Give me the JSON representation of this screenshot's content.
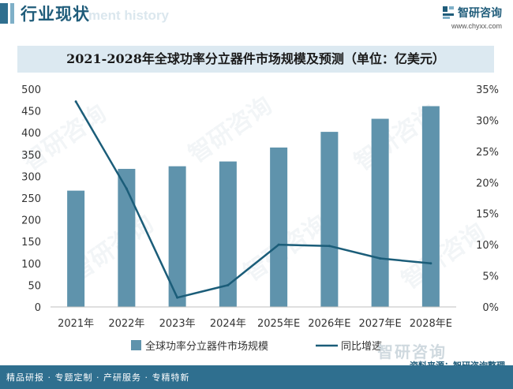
{
  "header": {
    "section_title": "行业现状",
    "section_ghost": "ment history",
    "brand_name": "智研咨询",
    "brand_url": "www.chyxx.com"
  },
  "watermark": "智研咨询",
  "footer": {
    "tagline": "精品研报 · 专题定制 · 产研服务 · 专精特新",
    "source": "资料来源：智研咨询整理",
    "source_brand": "智研咨询"
  },
  "colors": {
    "bar": "#5f93ac",
    "line": "#1b5d79",
    "title_band": "#dce9f1",
    "footer": "#2f6f8f"
  },
  "chart_data": {
    "type": "bar",
    "title": "2021-2028年全球功率分立器件市场规模及预测（单位：亿美元）",
    "categories": [
      "2021年",
      "2022年",
      "2023年",
      "2024年",
      "2025年E",
      "2026年E",
      "2027年E",
      "2028年E"
    ],
    "series": [
      {
        "name": "全球功率分立器件市场规模",
        "type": "bar",
        "axis": "left",
        "values": [
          267,
          317,
          323,
          334,
          366,
          402,
          432,
          461
        ]
      },
      {
        "name": "同比增速",
        "type": "line",
        "axis": "right",
        "values": [
          33.0,
          19.0,
          1.5,
          3.5,
          10.0,
          9.8,
          7.8,
          7.0
        ]
      }
    ],
    "y_left": {
      "min": 0,
      "max": 500,
      "step": 50,
      "ticks": [
        "0",
        "50",
        "100",
        "150",
        "200",
        "250",
        "300",
        "350",
        "400",
        "450",
        "500"
      ]
    },
    "y_right": {
      "min": 0,
      "max": 35,
      "step": 5,
      "ticks": [
        "0%",
        "5%",
        "10%",
        "15%",
        "20%",
        "25%",
        "30%",
        "35%"
      ]
    },
    "legend_position": "bottom",
    "grid": false
  }
}
